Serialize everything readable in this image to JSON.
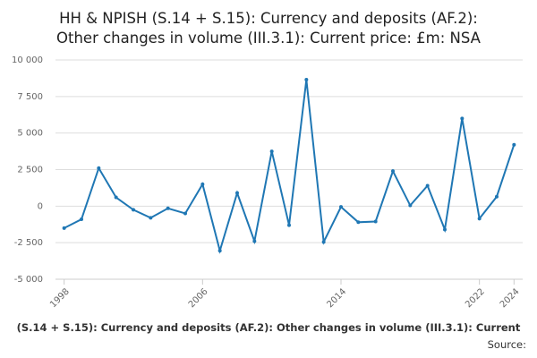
{
  "chart_data": {
    "type": "line",
    "title": [
      "HH & NPISH (S.14 + S.15): Currency and deposits (AF.2):",
      "Other changes in volume (III.3.1): Current price: £m: NSA"
    ],
    "footer": "(S.14 + S.15): Currency and deposits (AF.2): Other changes in volume (III.3.1): Current",
    "source": "Source:",
    "x": [
      1998,
      1999,
      2000,
      2001,
      2002,
      2003,
      2004,
      2005,
      2006,
      2007,
      2008,
      2009,
      2010,
      2011,
      2012,
      2013,
      2014,
      2015,
      2016,
      2017,
      2018,
      2019,
      2020,
      2021,
      2022,
      2023,
      2024
    ],
    "values": [
      -1500,
      -900,
      2600,
      600,
      -250,
      -800,
      -150,
      -500,
      1500,
      -3050,
      900,
      -2400,
      3750,
      -1300,
      8650,
      -2450,
      -50,
      -1100,
      -1050,
      2400,
      50,
      1400,
      -1600,
      6000,
      -850,
      650,
      4200
    ],
    "color": "#1f77b4",
    "xlim": [
      1997.5,
      2024.5
    ],
    "xticks": [
      1998,
      2006,
      2014,
      2022,
      2024
    ],
    "ylim": [
      -5000,
      10000
    ],
    "yticks": [
      {
        "value": -5000,
        "label": "-5 000"
      },
      {
        "value": -2500,
        "label": "-2 500"
      },
      0,
      {
        "value": 2500,
        "label": "2 500"
      },
      {
        "value": 5000,
        "label": "5 000"
      },
      {
        "value": 7500,
        "label": "7 500"
      },
      {
        "value": 10000,
        "label": "10 000"
      }
    ],
    "grid": true
  }
}
